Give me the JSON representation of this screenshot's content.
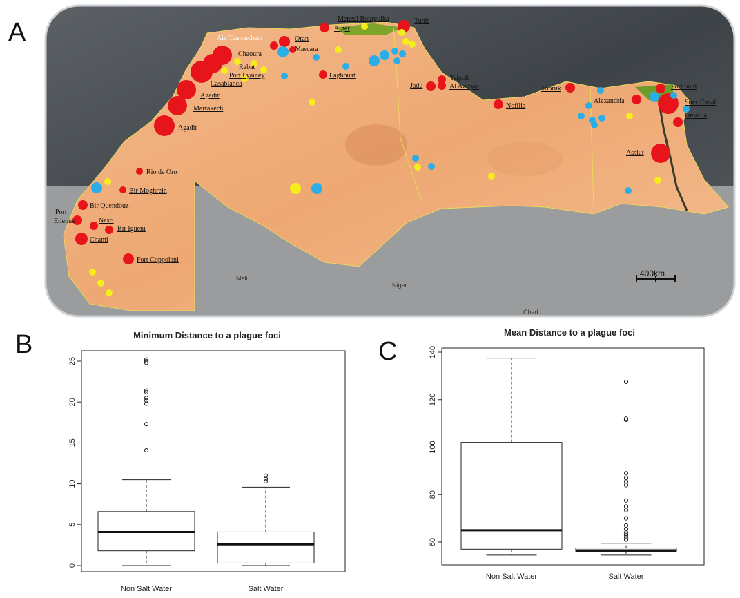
{
  "panels": {
    "a": "A",
    "b": "B",
    "c": "C"
  },
  "map": {
    "scale_label": "400km",
    "faint_labels": [
      "Mali",
      "Niger",
      "Chad"
    ],
    "colors": {
      "red": "#e8141b",
      "blue": "#2aaee8",
      "yellow": "#f5ee1a",
      "sea": "#4a4f55",
      "land": "#f0b07a",
      "outside": "#8a8c8e"
    },
    "place_labels": [
      "Menzel Bourguiba",
      "Tunis",
      "Alger",
      "Ain Temouchent",
      "Oran",
      "Mascara",
      "Chaoura",
      "Rabat",
      "Port Lyautey",
      "Casablanca",
      "Agadir",
      "Marrakech",
      "Agadir",
      "Laghouat",
      "Tripoli",
      "Jadu",
      "Al Azizyat",
      "Nofilia",
      "Tobruk",
      "Alexandria",
      "Port Said",
      "Suez Canal",
      "Ismailia",
      "Assiut",
      "Rio de Oro",
      "Bir Moghrein",
      "Port Etienne",
      "Bir Quendouz",
      "Nasri",
      "Bir Igueni",
      "Chami",
      "Fort Coppolani"
    ]
  },
  "chart_data": [
    {
      "type": "boxplot",
      "title": "Minimum Distance to a plague foci",
      "categories": [
        "Non Salt Water",
        "Salt Water"
      ],
      "ylim": [
        0,
        25
      ],
      "yticks": [
        0,
        5,
        10,
        15,
        20,
        25
      ],
      "boxes": [
        {
          "name": "Non Salt Water",
          "whisker_low": 0,
          "q1": 1.8,
          "median": 4.1,
          "q3": 6.6,
          "whisker_high": 10.5,
          "outliers": [
            14.1,
            17.3,
            19.8,
            20.2,
            20.5,
            21.2,
            21.4,
            24.8,
            25.0,
            25.2
          ]
        },
        {
          "name": "Salt Water",
          "whisker_low": 0,
          "q1": 0.3,
          "median": 2.6,
          "q3": 4.1,
          "whisker_high": 9.6,
          "outliers": [
            10.3,
            10.6,
            11.0
          ]
        }
      ]
    },
    {
      "type": "boxplot",
      "title": "Mean Distance to a plague foci",
      "categories": [
        "Non Salt Water",
        "Salt Water"
      ],
      "ylim": [
        60,
        140
      ],
      "yticks": [
        60,
        80,
        100,
        120,
        140
      ],
      "boxes": [
        {
          "name": "Non Salt Water",
          "whisker_low": 54.5,
          "q1": 57.0,
          "median": 65.0,
          "q3": 102.0,
          "whisker_high": 137.5,
          "outliers": []
        },
        {
          "name": "Salt Water",
          "whisker_low": 54.5,
          "q1": 56.0,
          "median": 56.5,
          "q3": 57.5,
          "whisker_high": 59.5,
          "outliers": [
            61,
            62,
            63,
            64,
            65.5,
            67,
            70,
            73.5,
            75,
            77.5,
            84,
            85.5,
            87,
            89,
            111.5,
            112,
            127.5
          ]
        }
      ]
    }
  ]
}
